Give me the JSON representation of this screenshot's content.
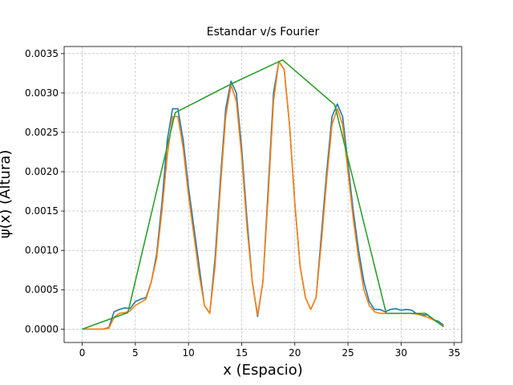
{
  "chart_data": {
    "type": "line",
    "title": "Estandar v/s Fourier",
    "xlabel": "x (Espacio)",
    "ylabel": "ψ(x) (Altura)",
    "xlim": [
      -1.7,
      35.7
    ],
    "ylim": [
      -0.00017,
      0.00359
    ],
    "grid": true,
    "xticks": [
      0,
      5,
      10,
      15,
      20,
      25,
      30,
      35
    ],
    "yticks": [
      {
        "value": 0,
        "label": "0.0000"
      },
      {
        "value": 0.0005,
        "label": "0.0005"
      },
      {
        "value": 0.001,
        "label": "0.0010"
      },
      {
        "value": 0.0015,
        "label": "0.0015"
      },
      {
        "value": 0.002,
        "label": "0.0020"
      },
      {
        "value": 0.0025,
        "label": "0.0025"
      },
      {
        "value": 0.003,
        "label": "0.0030"
      },
      {
        "value": 0.0035,
        "label": "0.0035"
      }
    ],
    "series": [
      {
        "color": "#1f77b4",
        "x": [
          0,
          0.5,
          1,
          1.5,
          2,
          2.5,
          3,
          3.5,
          4,
          4.5,
          5,
          5.5,
          6,
          6.5,
          7,
          7.5,
          8,
          8.5,
          9,
          9.5,
          10,
          10.5,
          11,
          11.5,
          12,
          12.5,
          13,
          13.5,
          14,
          14.5,
          15,
          15.5,
          16,
          16.5,
          17,
          17.5,
          18,
          18.5,
          19,
          19.5,
          20,
          20.5,
          21,
          21.5,
          22,
          22.5,
          23,
          23.5,
          24,
          24.5,
          25,
          25.5,
          26,
          26.5,
          27,
          27.5,
          28,
          28.5,
          29,
          29.5,
          30,
          30.5,
          31,
          31.5,
          32,
          32.5,
          33,
          33.5,
          34
        ],
        "values": [
          0,
          0,
          0,
          0,
          0,
          2e-05,
          0.00022,
          0.00025,
          0.00027,
          0.00026,
          0.00035,
          0.00038,
          0.0004,
          0.0006,
          0.00095,
          0.0016,
          0.0024,
          0.0028,
          0.0028,
          0.0024,
          0.0018,
          0.0013,
          0.0008,
          0.0003,
          0.0002,
          0.0009,
          0.0019,
          0.0028,
          0.00315,
          0.003,
          0.0023,
          0.0014,
          0.0006,
          0.00016,
          0.0006,
          0.0018,
          0.003,
          0.0034,
          0.0033,
          0.0026,
          0.0016,
          0.0008,
          0.0004,
          0.00025,
          0.0004,
          0.0012,
          0.002,
          0.0027,
          0.00286,
          0.0027,
          0.0021,
          0.0015,
          0.001,
          0.0006,
          0.00035,
          0.00025,
          0.00025,
          0.00022,
          0.00025,
          0.00026,
          0.00024,
          0.00025,
          0.00024,
          0.00019,
          0.00018,
          0.00018,
          0.00012,
          0.0001,
          5e-05
        ]
      },
      {
        "color": "#ff7f0e",
        "x": [
          0,
          0.5,
          1,
          1.5,
          2,
          2.5,
          3,
          3.5,
          4,
          4.5,
          5,
          5.5,
          6,
          6.5,
          7,
          7.5,
          8,
          8.5,
          9,
          9.5,
          10,
          10.5,
          11,
          11.5,
          12,
          12.5,
          13,
          13.5,
          14,
          14.5,
          15,
          15.5,
          16,
          16.5,
          17,
          17.5,
          18,
          18.5,
          19,
          19.5,
          20,
          20.5,
          21,
          21.5,
          22,
          22.5,
          23,
          23.5,
          24,
          24.5,
          25,
          25.5,
          26,
          26.5,
          27,
          27.5,
          28,
          28.5,
          29,
          29.5,
          30,
          30.5,
          31,
          31.5,
          32,
          32.5,
          33,
          33.5,
          34
        ],
        "values": [
          0,
          0,
          0,
          0,
          0,
          1e-05,
          0.00015,
          0.0002,
          0.00021,
          0.00023,
          0.0003,
          0.00034,
          0.00038,
          0.0006,
          0.0009,
          0.0015,
          0.0022,
          0.0027,
          0.0027,
          0.0023,
          0.0017,
          0.0012,
          0.0007,
          0.0003,
          0.0002,
          0.0008,
          0.0018,
          0.0027,
          0.0031,
          0.0029,
          0.0022,
          0.0013,
          0.0006,
          0.00018,
          0.0006,
          0.0017,
          0.0029,
          0.0034,
          0.0033,
          0.0026,
          0.0016,
          0.0008,
          0.0004,
          0.00025,
          0.0004,
          0.0011,
          0.0019,
          0.0026,
          0.0028,
          0.0026,
          0.002,
          0.0014,
          0.0009,
          0.0005,
          0.0003,
          0.00022,
          0.0002,
          0.0002,
          0.0002,
          0.0002,
          0.0002,
          0.0002,
          0.0002,
          0.00019,
          0.00017,
          0.00015,
          0.00012,
          8e-05,
          4e-05
        ]
      },
      {
        "color": "#2ca02c",
        "x": [
          0,
          4.3,
          8.75,
          14.1,
          18.85,
          23.75,
          28.6,
          32.3,
          34
        ],
        "values": [
          0,
          0.00021,
          0.00275,
          0.00312,
          0.00342,
          0.00285,
          0.0002,
          0.0002,
          3e-05
        ]
      }
    ]
  }
}
